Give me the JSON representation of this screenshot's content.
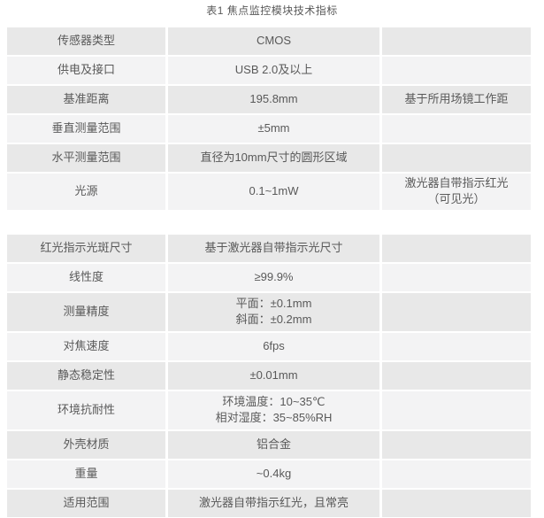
{
  "title": "表1 焦点监控模块技术指标",
  "colors": {
    "row_dark": "#e8e8e8",
    "row_light": "#f3f3f4",
    "text": "#595959",
    "background": "#ffffff"
  },
  "tables": [
    {
      "rows": [
        {
          "label": "传感器类型",
          "value": "CMOS",
          "note": ""
        },
        {
          "label": "供电及接口",
          "value": "USB 2.0及以上",
          "note": ""
        },
        {
          "label": "基准距离",
          "value": "195.8mm",
          "note": "基于所用场镜工作距"
        },
        {
          "label": "垂直测量范围",
          "value": "±5mm",
          "note": ""
        },
        {
          "label": "水平测量范围",
          "value": "直径为10mm尺寸的圆形区域",
          "note": ""
        },
        {
          "label": "光源",
          "value": "0.1~1mW",
          "note": "激光器自带指示红光\n（可见光）"
        }
      ]
    },
    {
      "rows": [
        {
          "label": "红光指示光斑尺寸",
          "value": "基于激光器自带指示光尺寸",
          "note": ""
        },
        {
          "label": "线性度",
          "value": "≥99.9%",
          "note": ""
        },
        {
          "label": "测量精度",
          "value": "平面：±0.1mm\n斜面：±0.2mm",
          "note": ""
        },
        {
          "label": "对焦速度",
          "value": "6fps",
          "note": ""
        },
        {
          "label": "静态稳定性",
          "value": "±0.01mm",
          "note": ""
        },
        {
          "label": "环境抗耐性",
          "value": "环境温度：10~35℃\n相对湿度：35~85%RH",
          "note": ""
        },
        {
          "label": "外壳材质",
          "value": "铝合金",
          "note": ""
        },
        {
          "label": "重量",
          "value": "~0.4kg",
          "note": ""
        },
        {
          "label": "适用范围",
          "value": "激光器自带指示红光，且常亮",
          "note": ""
        }
      ]
    }
  ]
}
